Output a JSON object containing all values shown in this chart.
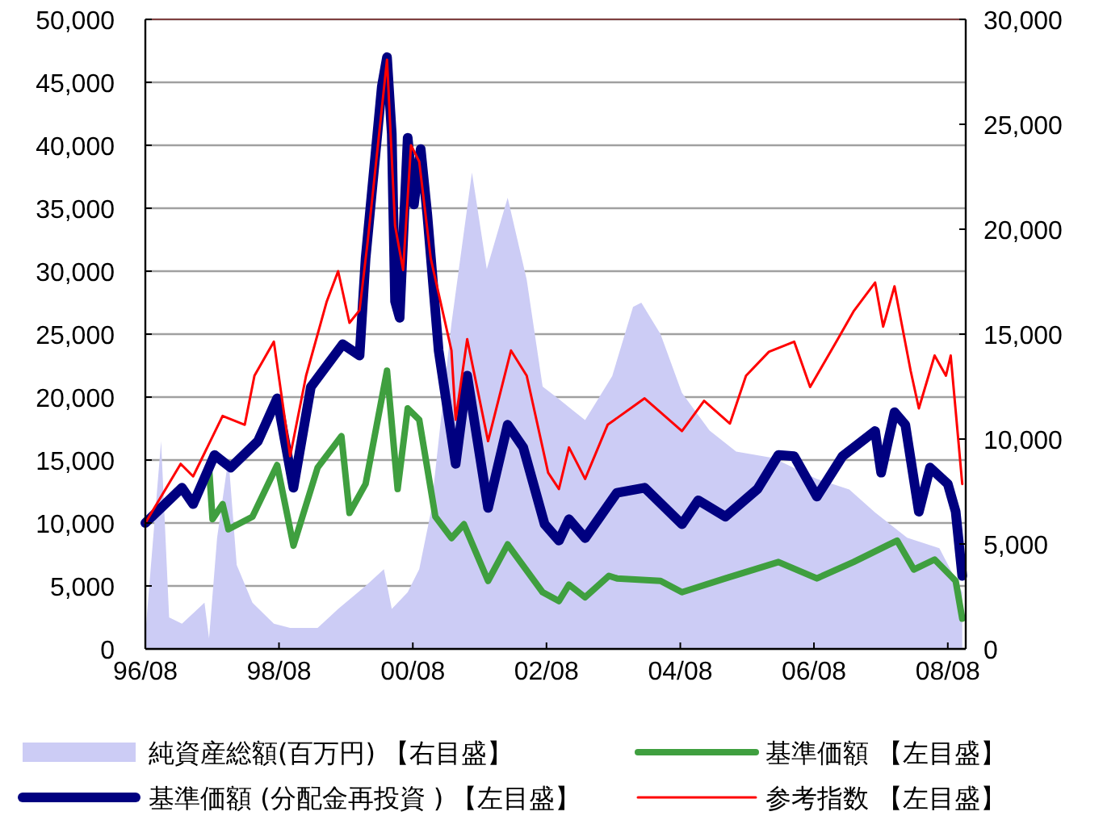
{
  "chart_data": {
    "type": "line",
    "xlim": [
      "1996-08-01",
      "2008-11-07"
    ],
    "xticks": [
      {
        "value": "1996-08-01",
        "label": "96/08"
      },
      {
        "value": "1998-08-01",
        "label": "98/08"
      },
      {
        "value": "2000-08-01",
        "label": "00/08"
      },
      {
        "value": "2002-08-01",
        "label": "02/08"
      },
      {
        "value": "2004-08-01",
        "label": "04/08"
      },
      {
        "value": "2006-08-01",
        "label": "06/08"
      },
      {
        "value": "2008-08-01",
        "label": "08/08"
      }
    ],
    "ylim": [
      0,
      50000
    ],
    "yticks": [
      0,
      {
        "value": 5000,
        "label": "5,000"
      },
      {
        "value": 10000,
        "label": "10,000"
      },
      {
        "value": 15000,
        "label": "15,000"
      },
      {
        "value": 20000,
        "label": "20,000"
      },
      {
        "value": 25000,
        "label": "25,000"
      },
      {
        "value": 30000,
        "label": "30,000"
      },
      {
        "value": 35000,
        "label": "35,000"
      },
      {
        "value": 40000,
        "label": "40,000"
      },
      {
        "value": 45000,
        "label": "45,000"
      },
      {
        "value": 50000,
        "label": "50,000"
      }
    ],
    "y2lim": [
      0,
      30000
    ],
    "y2ticks": [
      0,
      {
        "value": 5000,
        "label": "5,000"
      },
      {
        "value": 10000,
        "label": "10,000"
      },
      {
        "value": 15000,
        "label": "15,000"
      },
      {
        "value": 20000,
        "label": "20,000"
      },
      {
        "value": 25000,
        "label": "25,000"
      },
      {
        "value": 30000,
        "label": "30,000"
      }
    ],
    "grid": "y",
    "legend": "bottom",
    "series": [
      {
        "name": "純資産総額(百万円) 【右目盛】",
        "type": "area",
        "axis": "y2",
        "color": "#ccccf5",
        "x": [
          "1996-08-01",
          "1996-10-26",
          "1996-12-09",
          "1997-02-17",
          "1997-06-20",
          "1997-07-15",
          "1997-08-28",
          "1997-10-29",
          "1997-12-13",
          "1998-03-09",
          "1998-07-04",
          "1998-10-01",
          "1999-02-28",
          "1999-06-20",
          "1999-11-17",
          "2000-02-25",
          "2000-04-08",
          "2000-07-04",
          "2000-09-05",
          "2000-11-07",
          "2001-02-28",
          "2001-06-20",
          "2001-09-09",
          "2002-01-01",
          "2002-04-15",
          "2002-07-11",
          "2002-10-08",
          "2003-02-28",
          "2003-07-26",
          "2003-11-17",
          "2004-01-01",
          "2004-04-15",
          "2004-08-10",
          "2005-01-08",
          "2005-06-02",
          "2005-12-23",
          "2006-08-17",
          "2007-02-10",
          "2007-07-01",
          "2007-12-23",
          "2008-06-16",
          "2008-10-19"
        ],
        "values": [
          700,
          9900,
          1500,
          1200,
          2200,
          500,
          5300,
          9100,
          4000,
          2200,
          1200,
          1000,
          1000,
          1900,
          3000,
          3800,
          1900,
          2700,
          3800,
          6500,
          15500,
          22700,
          18100,
          21500,
          17600,
          12500,
          11900,
          10900,
          13000,
          16300,
          16500,
          15000,
          12200,
          10400,
          9400,
          9100,
          8100,
          7600,
          6500,
          5300,
          4800,
          2700
        ]
      },
      {
        "name": "基準価額 【左目盛】",
        "color": "#3f9f3f",
        "x": [
          "1997-07-15",
          "1997-08-03",
          "1997-09-27",
          "1997-10-29",
          "1998-03-09",
          "1998-07-22",
          "1998-10-19",
          "1999-02-28",
          "1999-07-08",
          "1999-08-21",
          "1999-11-17",
          "2000-03-13",
          "2000-05-10",
          "2000-07-04",
          "2000-09-05",
          "2000-12-02",
          "2001-02-28",
          "2001-05-07",
          "2001-09-16",
          "2002-01-01",
          "2002-07-11",
          "2002-10-08",
          "2002-12-02",
          "2003-02-28",
          "2003-07-08",
          "2003-08-21",
          "2004-04-15",
          "2004-08-10",
          "2005-04-04",
          "2006-01-19",
          "2006-08-17",
          "2007-03-05",
          "2007-09-02",
          "2007-10-29",
          "2008-01-29",
          "2008-05-21",
          "2008-09-13",
          "2008-10-19"
        ],
        "values": [
          14400,
          10300,
          11500,
          9500,
          10500,
          14600,
          8200,
          14400,
          16900,
          10800,
          13100,
          22100,
          12700,
          19100,
          18200,
          10500,
          8800,
          9900,
          5400,
          8300,
          4500,
          3800,
          5100,
          4100,
          5800,
          5600,
          5400,
          4500,
          5600,
          6900,
          5600,
          6900,
          8200,
          8600,
          6300,
          7100,
          5400,
          2400
        ]
      },
      {
        "name": "基準価額 (分配金再投資 ) 【左目盛】",
        "color": "#000080",
        "x": [
          "1996-08-01",
          "1997-02-17",
          "1997-04-19",
          "1997-08-14",
          "1997-11-10",
          "1998-04-08",
          "1998-07-22",
          "1998-10-19",
          "1999-01-22",
          "1999-07-15",
          "1999-10-15",
          "1999-11-17",
          "2000-02-14",
          "2000-03-13",
          "2000-04-08",
          "2000-04-26",
          "2000-05-21",
          "2000-07-04",
          "2000-08-07",
          "2000-09-13",
          "2000-10-19",
          "2000-12-20",
          "2001-03-23",
          "2001-05-25",
          "2001-09-16",
          "2002-01-01",
          "2002-03-27",
          "2002-07-22",
          "2002-10-08",
          "2002-12-02",
          "2003-02-28",
          "2003-07-08",
          "2003-08-21",
          "2004-01-19",
          "2004-08-10",
          "2004-11-07",
          "2005-04-04",
          "2005-09-27",
          "2006-01-19",
          "2006-04-15",
          "2006-08-17",
          "2007-01-04",
          "2007-07-01",
          "2007-08-03",
          "2007-10-15",
          "2007-12-13",
          "2008-02-25",
          "2008-04-26",
          "2008-08-01",
          "2008-09-13",
          "2008-10-19"
        ],
        "values": [
          10000,
          12800,
          11500,
          15400,
          14400,
          16500,
          19900,
          12800,
          20800,
          24200,
          23300,
          31000,
          44700,
          47000,
          40900,
          27600,
          26300,
          40600,
          35300,
          39700,
          34500,
          23700,
          14700,
          21700,
          11200,
          17800,
          16000,
          9900,
          8600,
          10300,
          8800,
          11500,
          12400,
          12800,
          9900,
          11800,
          10500,
          12700,
          15400,
          15300,
          12100,
          15300,
          17300,
          14000,
          18800,
          17800,
          10900,
          14400,
          13100,
          10900,
          5800
        ]
      },
      {
        "name": "参考指数 【左目盛】",
        "color": "#ff0000",
        "x": [
          "1996-08-01",
          "1997-02-10",
          "1997-04-19",
          "1997-09-27",
          "1998-01-26",
          "1998-03-20",
          "1998-07-04",
          "1998-10-01",
          "1998-12-27",
          "1999-04-19",
          "1999-06-20",
          "1999-08-21",
          "1999-10-15",
          "1999-11-28",
          "2000-03-13",
          "2000-04-26",
          "2000-06-09",
          "2000-07-22",
          "2000-09-05",
          "2000-11-07",
          "2001-02-28",
          "2001-03-23",
          "2001-05-25",
          "2001-09-16",
          "2002-01-19",
          "2002-04-15",
          "2002-08-10",
          "2002-10-08",
          "2002-12-02",
          "2003-02-28",
          "2003-07-01",
          "2004-01-19",
          "2004-08-10",
          "2004-12-09",
          "2005-04-29",
          "2005-07-26",
          "2005-11-28",
          "2006-04-15",
          "2006-07-11",
          "2006-12-09",
          "2007-03-05",
          "2007-07-01",
          "2007-08-14",
          "2007-10-15",
          "2008-01-11",
          "2008-02-25",
          "2008-05-21",
          "2008-07-22",
          "2008-08-17",
          "2008-10-19"
        ],
        "values": [
          10000,
          14700,
          13700,
          18500,
          17800,
          21700,
          24400,
          15300,
          21700,
          27600,
          30000,
          25900,
          26900,
          32300,
          46800,
          33600,
          30100,
          40000,
          38700,
          31000,
          23700,
          18200,
          24600,
          16500,
          23700,
          21700,
          14000,
          12700,
          16000,
          13500,
          17800,
          19900,
          17300,
          19700,
          17900,
          21700,
          23600,
          24400,
          20800,
          24600,
          26800,
          29100,
          25600,
          28800,
          22100,
          19100,
          23300,
          21700,
          23300,
          13100
        ]
      }
    ]
  }
}
